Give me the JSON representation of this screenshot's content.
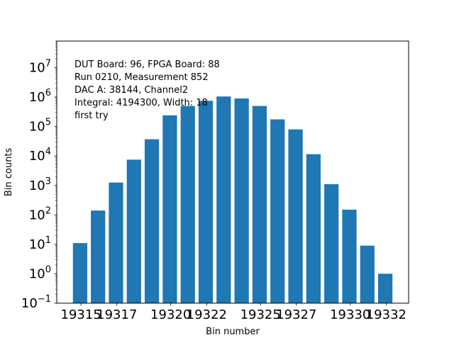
{
  "chart_data": {
    "type": "bar",
    "x": [
      19315,
      19316,
      19317,
      19318,
      19319,
      19320,
      19321,
      19322,
      19323,
      19324,
      19325,
      19326,
      19327,
      19328,
      19329,
      19330,
      19331,
      19332
    ],
    "values": [
      11,
      140,
      1250,
      7500,
      37000,
      240000,
      500000,
      750000,
      1050000,
      900000,
      500000,
      175000,
      80000,
      11500,
      1100,
      150,
      9,
      1
    ],
    "xlabel": "Bin number",
    "ylabel": "Bin counts",
    "yscale": "log",
    "ylim": [
      0.1,
      80000000
    ],
    "xlim": [
      19313.7,
      19333.3
    ],
    "x_tick_labels": [
      "19315",
      "19317",
      "19320",
      "19322",
      "19325",
      "19327",
      "19330",
      "19332"
    ],
    "x_tick_values": [
      19315.05,
      19317.05,
      19320.05,
      19322.05,
      19325.05,
      19327.05,
      19330.05,
      19332.05
    ],
    "y_tick_exponents": [
      "−1",
      "0",
      "1",
      "2",
      "3",
      "4",
      "5",
      "6",
      "7"
    ],
    "annotation_lines": [
      "DUT Board: 96, FPGA Board: 88",
      "Run 0210, Measurement 852",
      "DAC A: 38144, Channel2",
      "Integral: 4194300, Width: 18",
      "first try"
    ],
    "bar_color": "#1f77b4",
    "grid": false,
    "legend": "none"
  }
}
